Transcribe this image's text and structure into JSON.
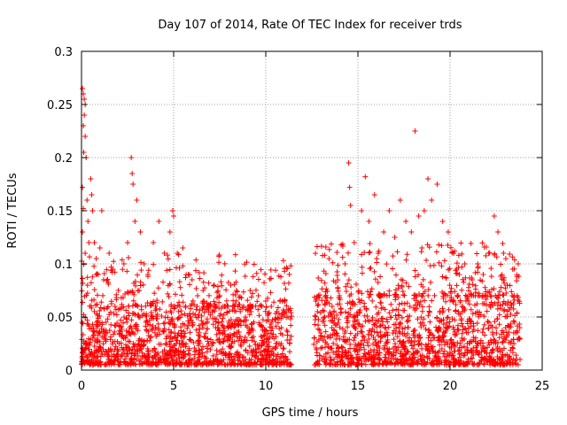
{
  "chart_data": {
    "type": "scatter",
    "title": "Day 107 of 2014, Rate Of TEC Index for receiver trds",
    "xlabel": "GPS time / hours",
    "ylabel": "ROTI / TECUs",
    "xlim": [
      0,
      25
    ],
    "ylim": [
      0,
      0.3
    ],
    "x_ticks": [
      0,
      5,
      10,
      15,
      20,
      25
    ],
    "x_tick_labels": [
      "0",
      "5",
      "10",
      "15",
      "20",
      "25"
    ],
    "y_ticks": [
      0,
      0.05,
      0.1,
      0.15,
      0.2,
      0.25,
      0.3
    ],
    "y_tick_labels": [
      "0",
      "0.05",
      "0.1",
      "0.15",
      "0.2",
      "0.25",
      "0.3"
    ],
    "grid": true,
    "marker": "+",
    "series_color": "#ff0000",
    "series": [
      {
        "name": "ROTI",
        "points": [
          [
            0.05,
            0.265
          ],
          [
            0.1,
            0.26
          ],
          [
            0.15,
            0.255
          ],
          [
            0.2,
            0.25
          ],
          [
            0.15,
            0.24
          ],
          [
            0.1,
            0.23
          ],
          [
            0.2,
            0.22
          ],
          [
            0.12,
            0.205
          ],
          [
            0.25,
            0.2
          ],
          [
            0.05,
            0.172
          ],
          [
            0.3,
            0.16
          ],
          [
            0.1,
            0.152
          ],
          [
            0.35,
            0.14
          ],
          [
            0.05,
            0.13
          ],
          [
            0.4,
            0.12
          ],
          [
            0.2,
            0.11
          ],
          [
            0.5,
            0.18
          ],
          [
            0.55,
            0.165
          ],
          [
            0.6,
            0.15
          ],
          [
            0.7,
            0.12
          ],
          [
            0.8,
            0.105
          ],
          [
            0.9,
            0.09
          ],
          [
            1.0,
            0.115
          ],
          [
            1.1,
            0.15
          ],
          [
            1.2,
            0.085
          ],
          [
            1.5,
            0.11
          ],
          [
            1.7,
            0.095
          ],
          [
            2.0,
            0.075
          ],
          [
            2.3,
            0.1
          ],
          [
            2.5,
            0.12
          ],
          [
            2.7,
            0.2
          ],
          [
            2.75,
            0.185
          ],
          [
            2.8,
            0.175
          ],
          [
            2.9,
            0.14
          ],
          [
            3.0,
            0.16
          ],
          [
            3.2,
            0.13
          ],
          [
            3.4,
            0.1
          ],
          [
            3.6,
            0.09
          ],
          [
            3.9,
            0.12
          ],
          [
            4.2,
            0.14
          ],
          [
            4.5,
            0.11
          ],
          [
            4.8,
            0.13
          ],
          [
            4.95,
            0.15
          ],
          [
            5.0,
            0.145
          ],
          [
            5.2,
            0.11
          ],
          [
            5.5,
            0.115
          ],
          [
            5.8,
            0.09
          ],
          [
            6.0,
            0.085
          ],
          [
            6.3,
            0.07
          ],
          [
            6.6,
            0.075
          ],
          [
            6.9,
            0.06
          ],
          [
            7.2,
            0.08
          ],
          [
            7.5,
            0.07
          ],
          [
            7.8,
            0.06
          ],
          [
            8.1,
            0.08
          ],
          [
            8.4,
            0.065
          ],
          [
            8.8,
            0.06
          ],
          [
            9.2,
            0.055
          ],
          [
            9.6,
            0.07
          ],
          [
            10.0,
            0.065
          ],
          [
            10.3,
            0.06
          ],
          [
            10.6,
            0.055
          ],
          [
            10.9,
            0.065
          ],
          [
            11.2,
            0.05
          ],
          [
            12.8,
            0.055
          ],
          [
            13.2,
            0.05
          ],
          [
            13.6,
            0.06
          ],
          [
            14.0,
            0.07
          ],
          [
            14.3,
            0.1
          ],
          [
            14.5,
            0.195
          ],
          [
            14.55,
            0.172
          ],
          [
            14.6,
            0.155
          ],
          [
            14.8,
            0.12
          ],
          [
            15.2,
            0.15
          ],
          [
            15.4,
            0.182
          ],
          [
            15.6,
            0.14
          ],
          [
            15.9,
            0.165
          ],
          [
            16.1,
            0.11
          ],
          [
            16.4,
            0.13
          ],
          [
            16.7,
            0.15
          ],
          [
            17.0,
            0.125
          ],
          [
            17.3,
            0.16
          ],
          [
            17.6,
            0.14
          ],
          [
            17.9,
            0.13
          ],
          [
            18.1,
            0.225
          ],
          [
            18.3,
            0.145
          ],
          [
            18.6,
            0.15
          ],
          [
            18.8,
            0.18
          ],
          [
            19.0,
            0.16
          ],
          [
            19.3,
            0.175
          ],
          [
            19.6,
            0.14
          ],
          [
            19.9,
            0.13
          ],
          [
            20.2,
            0.11
          ],
          [
            20.5,
            0.09
          ],
          [
            20.8,
            0.1
          ],
          [
            21.2,
            0.085
          ],
          [
            21.5,
            0.1
          ],
          [
            21.8,
            0.09
          ],
          [
            22.1,
            0.11
          ],
          [
            22.4,
            0.145
          ],
          [
            22.6,
            0.13
          ],
          [
            22.9,
            0.11
          ],
          [
            23.1,
            0.08
          ],
          [
            23.4,
            0.095
          ],
          [
            23.7,
            0.1
          ]
        ]
      }
    ],
    "dense_band": {
      "description": "dense cluster of low-value points",
      "segments": [
        {
          "x_range": [
            0,
            11.4
          ],
          "y_range": [
            0.005,
            0.06
          ]
        },
        {
          "x_range": [
            12.6,
            23.8
          ],
          "y_range": [
            0.005,
            0.07
          ]
        }
      ]
    }
  }
}
